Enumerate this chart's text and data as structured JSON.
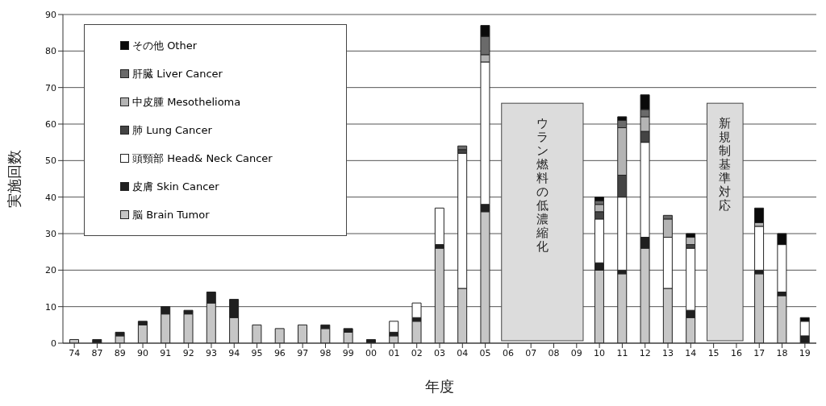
{
  "chart_data": {
    "type": "bar",
    "stacked": true,
    "xlabel": "年度",
    "ylabel": "実施回数",
    "categories": [
      "74",
      "87",
      "89",
      "90",
      "91",
      "92",
      "93",
      "94",
      "95",
      "96",
      "97",
      "98",
      "99",
      "00",
      "01",
      "02",
      "03",
      "04",
      "05",
      "06",
      "07",
      "08",
      "09",
      "10",
      "11",
      "12",
      "13",
      "14",
      "15",
      "16",
      "17",
      "18",
      "19"
    ],
    "series": [
      {
        "name": "脳 Brain Tumor",
        "color": "#c6c6c6",
        "values": [
          1,
          0,
          2,
          5,
          8,
          8,
          11,
          7,
          5,
          4,
          5,
          4,
          3,
          0,
          2,
          6,
          26,
          15,
          36,
          null,
          null,
          null,
          null,
          20,
          19,
          26,
          15,
          7,
          null,
          null,
          19,
          13,
          0
        ]
      },
      {
        "name": "皮膚 Skin Cancer",
        "color": "#1f1f1f",
        "values": [
          0,
          1,
          1,
          1,
          2,
          1,
          3,
          5,
          0,
          0,
          0,
          1,
          1,
          1,
          1,
          1,
          1,
          0,
          2,
          null,
          null,
          null,
          null,
          2,
          1,
          3,
          0,
          2,
          null,
          null,
          1,
          1,
          2
        ]
      },
      {
        "name": "頭頸部 Head& Neck Cancer",
        "color": "#ffffff",
        "values": [
          0,
          0,
          0,
          0,
          0,
          0,
          0,
          0,
          0,
          0,
          0,
          0,
          0,
          0,
          3,
          4,
          10,
          37,
          39,
          null,
          null,
          null,
          null,
          12,
          20,
          26,
          14,
          17,
          null,
          null,
          12,
          13,
          4
        ]
      },
      {
        "name": "肺 Lung Cancer",
        "color": "#444444",
        "values": [
          0,
          0,
          0,
          0,
          0,
          0,
          0,
          0,
          0,
          0,
          0,
          0,
          0,
          0,
          0,
          0,
          0,
          1,
          0,
          null,
          null,
          null,
          null,
          2,
          6,
          3,
          0,
          1,
          null,
          null,
          0,
          0,
          0
        ]
      },
      {
        "name": "中皮腫 Mesothelioma",
        "color": "#b4b4b4",
        "values": [
          0,
          0,
          0,
          0,
          0,
          0,
          0,
          0,
          0,
          0,
          0,
          0,
          0,
          0,
          0,
          0,
          0,
          0,
          2,
          null,
          null,
          null,
          null,
          2,
          13,
          4,
          5,
          2,
          null,
          null,
          1,
          0,
          0
        ]
      },
      {
        "name": "肝臓 Liver Cancer",
        "color": "#6a6a6a",
        "values": [
          0,
          0,
          0,
          0,
          0,
          0,
          0,
          0,
          0,
          0,
          0,
          0,
          0,
          0,
          0,
          0,
          0,
          1,
          5,
          null,
          null,
          null,
          null,
          1,
          2,
          2,
          1,
          0,
          null,
          null,
          0,
          0,
          0
        ]
      },
      {
        "name": "その他 Other",
        "color": "#0a0a0a",
        "values": [
          0,
          0,
          0,
          0,
          0,
          0,
          0,
          0,
          0,
          0,
          0,
          0,
          0,
          0,
          0,
          0,
          0,
          0,
          3,
          null,
          null,
          null,
          null,
          1,
          1,
          4,
          0,
          1,
          null,
          null,
          4,
          3,
          1
        ]
      }
    ],
    "ylim": [
      0,
      90
    ],
    "yticks": [
      0,
      10,
      20,
      30,
      40,
      50,
      60,
      70,
      80,
      90
    ],
    "grid": "y",
    "legend": "top left",
    "bands": [
      {
        "axis": "x",
        "from": "06",
        "to": "09",
        "label": "ウラン燃料の低濃縮化",
        "color": "#dcdcdc"
      },
      {
        "axis": "x",
        "from": "15",
        "to": "16",
        "label": "新規制基準対応",
        "color": "#dcdcdc"
      }
    ]
  }
}
